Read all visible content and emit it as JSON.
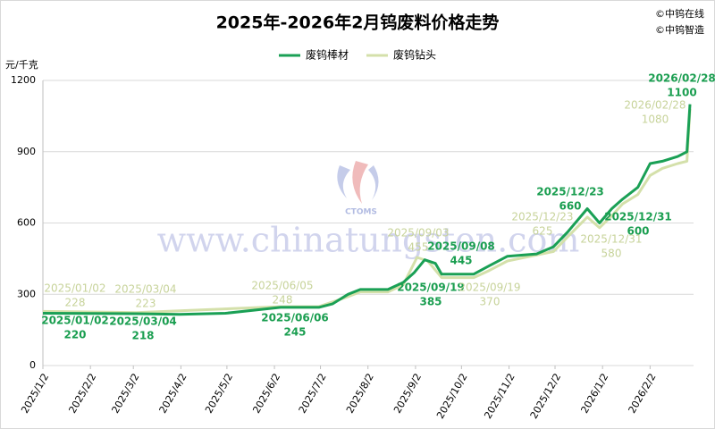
{
  "chart_data": {
    "type": "line",
    "title": "2025年-2026年2月钨废料价格走势",
    "credits": [
      "©中钨在线",
      "©中钨智造"
    ],
    "y_label": "元/千克",
    "watermark": "www.chinatungsten.com",
    "logo_text": "CTOMS",
    "ylim": [
      0,
      1200
    ],
    "yticks": [
      0,
      300,
      600,
      900,
      1200
    ],
    "xlim": [
      "2025/1/2",
      "2026/2/28"
    ],
    "xticks": [
      "2025/1/2",
      "2025/2/2",
      "2025/3/2",
      "2025/4/2",
      "2025/5/2",
      "2025/6/2",
      "2025/7/2",
      "2025/8/2",
      "2025/9/2",
      "2025/10/2",
      "2025/11/2",
      "2025/12/2",
      "2026/1/2",
      "2026/2/2"
    ],
    "grid": true,
    "legend": "top",
    "series": [
      {
        "name": "废钨棒材",
        "color": "#1aa055",
        "x": [
          "2025/01/02",
          "2025/03/04",
          "2025/04/01",
          "2025/05/01",
          "2025/06/06",
          "2025/07/01",
          "2025/07/10",
          "2025/07/20",
          "2025/07/28",
          "2025/08/15",
          "2025/08/25",
          "2025/09/01",
          "2025/09/08",
          "2025/09/15",
          "2025/09/19",
          "2025/10/10",
          "2025/10/20",
          "2025/11/01",
          "2025/11/20",
          "2025/12/01",
          "2025/12/10",
          "2025/12/23",
          "2025/12/31",
          "2026/01/08",
          "2026/01/15",
          "2026/01/25",
          "2026/02/02",
          "2026/02/10",
          "2026/02/20",
          "2026/02/26",
          "2026/02/28"
        ],
        "values": [
          220,
          218,
          215,
          220,
          245,
          245,
          260,
          300,
          320,
          320,
          350,
          390,
          445,
          430,
          385,
          385,
          420,
          460,
          470,
          500,
          560,
          660,
          600,
          660,
          700,
          750,
          850,
          860,
          880,
          900,
          1100
        ],
        "annotations": [
          {
            "x": "2025/01/02",
            "value": 220
          },
          {
            "x": "2025/03/04",
            "value": 218
          },
          {
            "x": "2025/06/06",
            "value": 245
          },
          {
            "x": "2025/09/19",
            "value": 385
          },
          {
            "x": "2025/09/08",
            "value": 445
          },
          {
            "x": "2025/12/23",
            "value": 660
          },
          {
            "x": "2025/12/31",
            "value": 600
          },
          {
            "x": "2026/02/28",
            "value": 1100
          }
        ]
      },
      {
        "name": "废钨钻头",
        "color": "#d4e0aa",
        "x": [
          "2025/01/02",
          "2025/03/04",
          "2025/06/05",
          "2025/07/01",
          "2025/07/20",
          "2025/07/28",
          "2025/08/15",
          "2025/08/25",
          "2025/09/03",
          "2025/09/10",
          "2025/09/19",
          "2025/10/10",
          "2025/10/20",
          "2025/11/01",
          "2025/12/01",
          "2025/12/10",
          "2025/12/23",
          "2025/12/31",
          "2026/01/08",
          "2026/01/15",
          "2026/01/25",
          "2026/02/02",
          "2026/02/10",
          "2026/02/20",
          "2026/02/26",
          "2026/02/28"
        ],
        "values": [
          228,
          223,
          248,
          248,
          290,
          310,
          310,
          340,
          455,
          440,
          370,
          370,
          400,
          440,
          480,
          540,
          625,
          580,
          630,
          680,
          720,
          800,
          830,
          850,
          860,
          1080
        ],
        "annotations": [
          {
            "x": "2025/01/02",
            "value": 228
          },
          {
            "x": "2025/03/04",
            "value": 223
          },
          {
            "x": "2025/06/05",
            "value": 248
          },
          {
            "x": "2025/09/03",
            "value": 455
          },
          {
            "x": "2025/09/19",
            "value": 370
          },
          {
            "x": "2025/12/23",
            "value": 625
          },
          {
            "x": "2025/12/31",
            "value": 580
          },
          {
            "x": "2026/02/28",
            "value": 1080
          }
        ]
      }
    ]
  }
}
